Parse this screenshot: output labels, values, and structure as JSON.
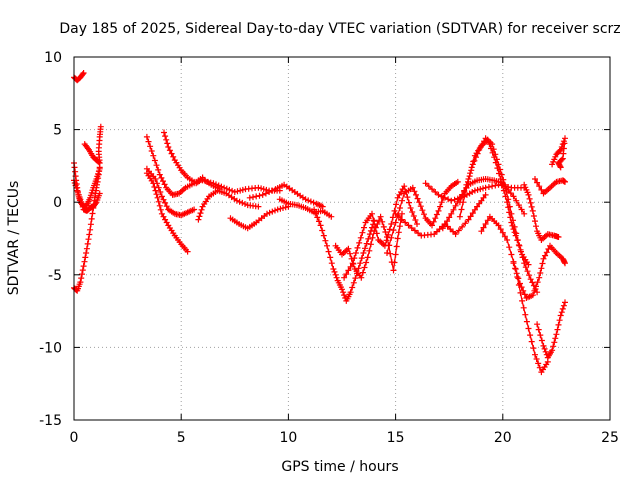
{
  "chart_data": {
    "type": "scatter",
    "title": "Day 185 of 2025, Sidereal Day-to-day VTEC variation (SDTVAR) for receiver scrz",
    "xlabel": "GPS time / hours",
    "ylabel": "SDTVAR / TECUs",
    "xlim": [
      0,
      25
    ],
    "ylim": [
      -15,
      10
    ],
    "xticks": [
      0,
      5,
      10,
      15,
      20,
      25
    ],
    "yticks": [
      -15,
      -10,
      -5,
      0,
      5,
      10
    ],
    "grid": true,
    "marker": "plus",
    "color": "#ff0000",
    "series": [
      {
        "name": "arc-1",
        "points": [
          [
            0.0,
            8.6
          ],
          [
            0.15,
            8.4
          ],
          [
            0.3,
            8.6
          ],
          [
            0.45,
            8.9
          ]
        ]
      },
      {
        "name": "arc-2",
        "points": [
          [
            0.0,
            2.7
          ],
          [
            0.1,
            1.5
          ],
          [
            0.2,
            0.5
          ],
          [
            0.3,
            0.0
          ],
          [
            0.45,
            -0.3
          ],
          [
            0.6,
            -0.2
          ],
          [
            0.75,
            0.3
          ],
          [
            0.9,
            1.0
          ],
          [
            1.05,
            1.6
          ],
          [
            1.2,
            2.3
          ]
        ]
      },
      {
        "name": "arc-3",
        "points": [
          [
            0.0,
            1.5
          ],
          [
            0.15,
            0.8
          ],
          [
            0.3,
            0.2
          ],
          [
            0.45,
            -0.5
          ],
          [
            0.6,
            -0.6
          ],
          [
            0.75,
            -0.4
          ],
          [
            0.9,
            -0.3
          ],
          [
            1.05,
            0.0
          ],
          [
            1.2,
            0.6
          ]
        ]
      },
      {
        "name": "arc-4",
        "points": [
          [
            0.0,
            -5.9
          ],
          [
            0.15,
            -6.1
          ],
          [
            0.3,
            -5.5
          ],
          [
            0.45,
            -4.4
          ],
          [
            0.6,
            -3.2
          ],
          [
            0.75,
            -1.9
          ],
          [
            0.9,
            -0.4
          ],
          [
            1.0,
            0.6
          ],
          [
            1.1,
            1.4
          ],
          [
            1.2,
            2.4
          ]
        ]
      },
      {
        "name": "arc-5",
        "points": [
          [
            0.5,
            4.0
          ],
          [
            0.7,
            3.6
          ],
          [
            0.9,
            3.1
          ],
          [
            1.05,
            2.9
          ],
          [
            1.2,
            2.7
          ],
          [
            1.15,
            3.5
          ],
          [
            1.2,
            4.5
          ],
          [
            1.25,
            5.2
          ]
        ]
      },
      {
        "name": "arc-6",
        "points": [
          [
            3.4,
            4.5
          ],
          [
            3.7,
            3.2
          ],
          [
            4.0,
            1.9
          ],
          [
            4.3,
            1.0
          ],
          [
            4.6,
            0.5
          ],
          [
            4.9,
            0.6
          ],
          [
            5.2,
            1.0
          ],
          [
            5.6,
            1.3
          ],
          [
            6.0,
            1.7
          ]
        ]
      },
      {
        "name": "arc-7",
        "points": [
          [
            4.2,
            4.8
          ],
          [
            4.4,
            3.8
          ],
          [
            4.7,
            2.9
          ],
          [
            5.0,
            2.2
          ],
          [
            5.3,
            1.7
          ],
          [
            5.7,
            1.3
          ],
          [
            6.0,
            1.6
          ],
          [
            6.4,
            1.2
          ],
          [
            6.8,
            0.9
          ]
        ]
      },
      {
        "name": "arc-8",
        "points": [
          [
            3.4,
            2.3
          ],
          [
            3.8,
            1.6
          ],
          [
            4.1,
            0.4
          ],
          [
            4.4,
            -0.5
          ],
          [
            4.7,
            -0.8
          ],
          [
            5.0,
            -0.9
          ],
          [
            5.3,
            -0.7
          ],
          [
            5.6,
            -0.5
          ]
        ]
      },
      {
        "name": "arc-9",
        "points": [
          [
            3.4,
            2.0
          ],
          [
            3.7,
            1.3
          ],
          [
            3.9,
            0.3
          ],
          [
            4.1,
            -0.8
          ],
          [
            4.4,
            -1.6
          ],
          [
            4.7,
            -2.3
          ],
          [
            5.0,
            -2.9
          ],
          [
            5.3,
            -3.4
          ]
        ]
      },
      {
        "name": "arc-10",
        "points": [
          [
            5.8,
            -1.2
          ],
          [
            6.0,
            -0.3
          ],
          [
            6.3,
            0.4
          ],
          [
            6.7,
            0.8
          ],
          [
            7.1,
            0.6
          ],
          [
            7.6,
            0.1
          ],
          [
            8.1,
            -0.2
          ],
          [
            8.6,
            -0.3
          ]
        ]
      },
      {
        "name": "arc-11",
        "points": [
          [
            6.0,
            1.5
          ],
          [
            6.5,
            1.3
          ],
          [
            7.0,
            1.0
          ],
          [
            7.5,
            0.7
          ],
          [
            8.0,
            0.9
          ],
          [
            8.6,
            1.0
          ],
          [
            9.1,
            0.8
          ],
          [
            9.6,
            0.8
          ]
        ]
      },
      {
        "name": "arc-12",
        "points": [
          [
            7.3,
            -1.1
          ],
          [
            7.7,
            -1.5
          ],
          [
            8.1,
            -1.8
          ],
          [
            8.5,
            -1.4
          ],
          [
            9.0,
            -0.8
          ],
          [
            9.5,
            -0.5
          ],
          [
            10.0,
            -0.3
          ]
        ]
      },
      {
        "name": "arc-13",
        "points": [
          [
            8.2,
            0.3
          ],
          [
            8.8,
            0.5
          ],
          [
            9.4,
            0.9
          ],
          [
            9.8,
            1.2
          ],
          [
            10.3,
            0.7
          ],
          [
            10.8,
            0.2
          ],
          [
            11.3,
            -0.1
          ],
          [
            11.6,
            -0.3
          ]
        ]
      },
      {
        "name": "arc-14",
        "points": [
          [
            9.6,
            0.2
          ],
          [
            10.0,
            -0.1
          ],
          [
            10.4,
            -0.2
          ],
          [
            10.8,
            -0.4
          ],
          [
            11.2,
            -0.7
          ],
          [
            11.6,
            -0.6
          ],
          [
            12.0,
            -1.0
          ]
        ]
      },
      {
        "name": "arc-15",
        "points": [
          [
            11.2,
            -0.5
          ],
          [
            11.5,
            -1.6
          ],
          [
            11.8,
            -3.0
          ],
          [
            12.1,
            -4.6
          ],
          [
            12.3,
            -5.4
          ],
          [
            12.5,
            -6.0
          ],
          [
            12.7,
            -6.8
          ],
          [
            12.9,
            -6.2
          ],
          [
            13.2,
            -4.9
          ],
          [
            13.5,
            -3.5
          ],
          [
            13.8,
            -2.2
          ],
          [
            14.0,
            -1.3
          ]
        ]
      },
      {
        "name": "arc-16",
        "points": [
          [
            12.2,
            -3.0
          ],
          [
            12.5,
            -3.6
          ],
          [
            12.8,
            -3.2
          ],
          [
            13.1,
            -4.6
          ],
          [
            13.4,
            -5.2
          ],
          [
            13.7,
            -3.8
          ],
          [
            14.0,
            -2.0
          ],
          [
            14.3,
            -1.0
          ],
          [
            14.6,
            -2.4
          ],
          [
            14.9,
            -4.7
          ],
          [
            15.1,
            -2.5
          ],
          [
            15.3,
            -0.8
          ]
        ]
      },
      {
        "name": "arc-17",
        "points": [
          [
            12.6,
            -5.2
          ],
          [
            13.0,
            -4.2
          ],
          [
            13.3,
            -2.8
          ],
          [
            13.6,
            -1.4
          ],
          [
            13.9,
            -0.8
          ],
          [
            14.2,
            -2.6
          ],
          [
            14.5,
            -3.0
          ],
          [
            14.8,
            -1.5
          ],
          [
            15.1,
            0.3
          ],
          [
            15.4,
            1.1
          ],
          [
            15.7,
            -0.4
          ],
          [
            16.0,
            -1.5
          ]
        ]
      },
      {
        "name": "arc-18",
        "points": [
          [
            14.6,
            -3.5
          ],
          [
            15.0,
            -1.4
          ],
          [
            15.4,
            0.6
          ],
          [
            15.8,
            1.0
          ],
          [
            16.1,
            0.0
          ],
          [
            16.4,
            -1.1
          ],
          [
            16.7,
            -1.6
          ],
          [
            17.0,
            -0.6
          ],
          [
            17.3,
            0.6
          ],
          [
            17.6,
            1.1
          ],
          [
            17.9,
            1.4
          ]
        ]
      },
      {
        "name": "arc-19",
        "points": [
          [
            15.0,
            -0.8
          ],
          [
            15.6,
            -1.6
          ],
          [
            16.2,
            -2.3
          ],
          [
            16.8,
            -2.2
          ],
          [
            17.3,
            -1.5
          ],
          [
            17.8,
            -2.2
          ],
          [
            18.4,
            -1.2
          ],
          [
            18.8,
            -0.3
          ],
          [
            19.2,
            0.5
          ]
        ]
      },
      {
        "name": "arc-20",
        "points": [
          [
            16.4,
            1.3
          ],
          [
            17.0,
            0.5
          ],
          [
            17.6,
            0.1
          ],
          [
            18.2,
            0.4
          ],
          [
            18.7,
            0.8
          ],
          [
            19.2,
            1.0
          ],
          [
            19.8,
            1.2
          ],
          [
            20.4,
            1.0
          ],
          [
            21.0,
            1.0
          ]
        ]
      },
      {
        "name": "arc-21",
        "points": [
          [
            17.2,
            -1.8
          ],
          [
            17.6,
            -0.8
          ],
          [
            18.0,
            0.3
          ],
          [
            18.4,
            1.2
          ],
          [
            18.8,
            1.5
          ],
          [
            19.2,
            1.6
          ],
          [
            19.6,
            1.5
          ],
          [
            20.0,
            1.3
          ],
          [
            20.5,
            0.4
          ],
          [
            21.0,
            -0.8
          ]
        ]
      },
      {
        "name": "arc-22",
        "points": [
          [
            18.0,
            -1.0
          ],
          [
            18.3,
            1.0
          ],
          [
            18.6,
            2.6
          ],
          [
            18.9,
            3.6
          ],
          [
            19.2,
            4.4
          ],
          [
            19.5,
            4.0
          ],
          [
            19.8,
            2.6
          ],
          [
            20.1,
            1.2
          ],
          [
            20.4,
            -0.8
          ],
          [
            20.7,
            -2.6
          ],
          [
            21.0,
            -4.2
          ],
          [
            21.3,
            -5.3
          ],
          [
            21.6,
            -6.2
          ]
        ]
      },
      {
        "name": "arc-23",
        "points": [
          [
            18.0,
            0.0
          ],
          [
            18.4,
            1.6
          ],
          [
            18.7,
            3.2
          ],
          [
            19.0,
            3.9
          ],
          [
            19.3,
            4.3
          ],
          [
            19.6,
            3.1
          ],
          [
            19.9,
            1.6
          ],
          [
            20.2,
            0.0
          ],
          [
            20.4,
            -1.4
          ],
          [
            20.6,
            -2.3
          ],
          [
            20.9,
            -3.6
          ],
          [
            21.2,
            -4.3
          ]
        ]
      },
      {
        "name": "arc-24",
        "points": [
          [
            19.0,
            -2.0
          ],
          [
            19.4,
            -1.0
          ],
          [
            19.8,
            -1.6
          ],
          [
            20.2,
            -2.6
          ],
          [
            20.6,
            -4.6
          ],
          [
            20.9,
            -6.8
          ],
          [
            21.2,
            -8.7
          ],
          [
            21.5,
            -10.5
          ],
          [
            21.8,
            -11.7
          ],
          [
            22.1,
            -11.0
          ]
        ]
      },
      {
        "name": "arc-25",
        "points": [
          [
            20.5,
            -4.2
          ],
          [
            20.8,
            -5.6
          ],
          [
            21.1,
            -6.6
          ],
          [
            21.4,
            -6.4
          ],
          [
            21.7,
            -5.2
          ],
          [
            21.9,
            -3.9
          ],
          [
            22.2,
            -3.0
          ],
          [
            22.5,
            -3.5
          ],
          [
            22.8,
            -3.9
          ],
          [
            22.9,
            -4.2
          ]
        ]
      },
      {
        "name": "arc-26",
        "points": [
          [
            21.0,
            1.2
          ],
          [
            21.2,
            0.5
          ],
          [
            21.4,
            -0.6
          ],
          [
            21.6,
            -2.0
          ],
          [
            21.8,
            -2.6
          ],
          [
            22.1,
            -2.2
          ],
          [
            22.4,
            -2.3
          ],
          [
            22.6,
            -2.4
          ]
        ]
      },
      {
        "name": "arc-27",
        "points": [
          [
            21.6,
            -8.4
          ],
          [
            21.9,
            -9.9
          ],
          [
            22.1,
            -10.7
          ],
          [
            22.3,
            -10.2
          ],
          [
            22.5,
            -9.1
          ],
          [
            22.7,
            -7.8
          ],
          [
            22.9,
            -6.9
          ]
        ]
      },
      {
        "name": "arc-28",
        "points": [
          [
            22.3,
            2.6
          ],
          [
            22.5,
            3.3
          ],
          [
            22.7,
            3.6
          ],
          [
            22.9,
            4.4
          ],
          [
            22.8,
            3.0
          ],
          [
            22.6,
            2.7
          ],
          [
            22.7,
            2.4
          ]
        ]
      },
      {
        "name": "arc-29",
        "points": [
          [
            21.5,
            1.6
          ],
          [
            21.9,
            0.6
          ],
          [
            22.2,
            1.0
          ],
          [
            22.5,
            1.4
          ],
          [
            22.8,
            1.5
          ],
          [
            22.9,
            1.4
          ]
        ]
      }
    ]
  }
}
